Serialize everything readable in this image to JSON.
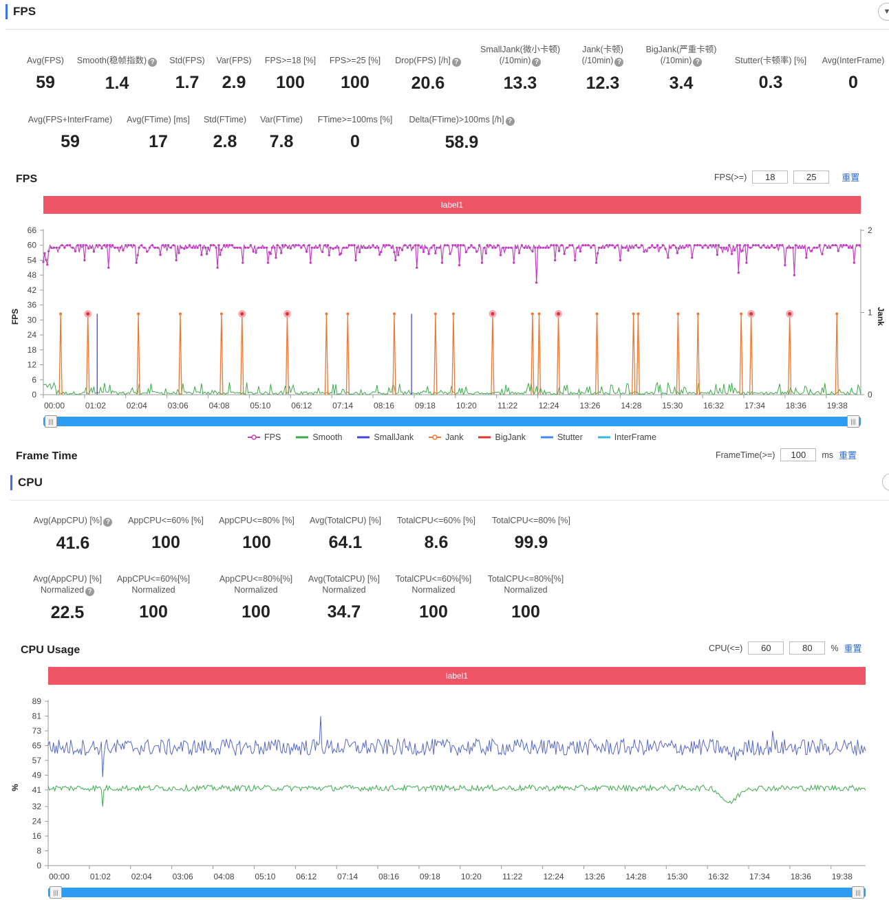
{
  "fps_section": {
    "title": "FPS",
    "metrics_row1": [
      {
        "label": "Avg(FPS)",
        "value": "59",
        "help": false
      },
      {
        "label": "Smooth(稳帧指数)",
        "value": "1.4",
        "help": true
      },
      {
        "label": "Std(FPS)",
        "value": "1.7",
        "help": false
      },
      {
        "label": "Var(FPS)",
        "value": "2.9",
        "help": false
      },
      {
        "label": "FPS>=18 [%]",
        "value": "100",
        "help": false
      },
      {
        "label": "FPS>=25 [%]",
        "value": "100",
        "help": false
      },
      {
        "label": "Drop(FPS) [/h]",
        "value": "20.6",
        "help": true
      },
      {
        "label": "SmallJank(微小卡顿)",
        "label2": "(/10min)",
        "value": "13.3",
        "help": true
      },
      {
        "label": "Jank(卡顿)",
        "label2": "(/10min)",
        "value": "12.3",
        "help": true
      },
      {
        "label": "BigJank(严重卡顿)",
        "label2": "(/10min)",
        "value": "3.4",
        "help": true
      },
      {
        "label": "Stutter(卡顿率) [%]",
        "value": "0.3",
        "help": false
      },
      {
        "label": "Avg(InterFrame)",
        "value": "0",
        "help": false
      }
    ],
    "metrics_row2": [
      {
        "label": "Avg(FPS+InterFrame)",
        "value": "59",
        "help": false
      },
      {
        "label": "Avg(FTime) [ms]",
        "value": "17",
        "help": false
      },
      {
        "label": "Std(FTime)",
        "value": "2.8",
        "help": false
      },
      {
        "label": "Var(FTime)",
        "value": "7.8",
        "help": false
      },
      {
        "label": "FTime>=100ms [%]",
        "value": "0",
        "help": false
      },
      {
        "label": "Delta(FTime)>100ms [/h]",
        "value": "58.9",
        "help": true
      }
    ],
    "chart": {
      "title": "FPS",
      "threshold_label": "FPS(>=)",
      "threshold1": "18",
      "threshold2": "25",
      "reset": "重置",
      "band_label": "label1",
      "y_axis_label": "FPS",
      "y2_axis_label": "Jank"
    },
    "frame_time": {
      "title": "Frame Time",
      "threshold_label": "FrameTime(>=)",
      "threshold": "100",
      "unit": "ms",
      "reset": "重置"
    }
  },
  "cpu_section": {
    "title": "CPU",
    "metrics_row1": [
      {
        "label": "Avg(AppCPU) [%]",
        "value": "41.6",
        "help": true
      },
      {
        "label": "AppCPU<=60% [%]",
        "value": "100",
        "help": false
      },
      {
        "label": "AppCPU<=80% [%]",
        "value": "100",
        "help": false
      },
      {
        "label": "Avg(TotalCPU) [%]",
        "value": "64.1",
        "help": false
      },
      {
        "label": "TotalCPU<=60% [%]",
        "value": "8.6",
        "help": false
      },
      {
        "label": "TotalCPU<=80% [%]",
        "value": "99.9",
        "help": false
      }
    ],
    "metrics_row2": [
      {
        "label": "Avg(AppCPU) [%]",
        "label2": "Normalized",
        "value": "22.5",
        "help": true
      },
      {
        "label": "AppCPU<=60%[%]",
        "label2": "Normalized",
        "value": "100",
        "help": false
      },
      {
        "label": "AppCPU<=80%[%]",
        "label2": "Normalized",
        "value": "100",
        "help": false
      },
      {
        "label": "Avg(TotalCPU) [%]",
        "label2": "Normalized",
        "value": "34.7",
        "help": false
      },
      {
        "label": "TotalCPU<=60%[%]",
        "label2": "Normalized",
        "value": "100",
        "help": false
      },
      {
        "label": "TotalCPU<=80%[%]",
        "label2": "Normalized",
        "value": "100",
        "help": false
      }
    ],
    "chart": {
      "title": "CPU Usage",
      "threshold_label": "CPU(<=)",
      "threshold1": "60",
      "threshold2": "80",
      "unit": "%",
      "reset": "重置",
      "band_label": "label1",
      "y_axis_label": "%"
    }
  },
  "colors": {
    "fps": "#c040c0",
    "smooth": "#3aaa4a",
    "smalljank": "#4444dd",
    "jank": "#ee7733",
    "bigjank": "#dd3333",
    "stutter": "#4488ee",
    "interframe": "#33bbdd",
    "band": "#ee5566",
    "slider": "#2e9cf0",
    "total_cpu": "#5566cc",
    "app_cpu": "#3aaa4a"
  },
  "chart_data": [
    {
      "type": "line",
      "title": "FPS",
      "x_ticks": [
        "00:00",
        "01:02",
        "02:04",
        "03:06",
        "04:08",
        "05:10",
        "06:12",
        "07:14",
        "08:16",
        "09:18",
        "10:20",
        "11:22",
        "12:24",
        "13:26",
        "14:28",
        "15:30",
        "16:32",
        "17:34",
        "18:36",
        "19:38"
      ],
      "y_ticks": [
        0,
        6,
        12,
        18,
        24,
        30,
        36,
        42,
        48,
        54,
        60,
        66
      ],
      "y2_ticks": [
        0,
        1,
        2
      ],
      "ylim": [
        0,
        66
      ],
      "y2lim": [
        0,
        2
      ],
      "xlim_seconds": [
        0,
        1230
      ],
      "baseline_fps": 59,
      "fps_dips": [
        {
          "t": 5,
          "v": 51
        },
        {
          "t": 62,
          "v": 54
        },
        {
          "t": 98,
          "v": 51
        },
        {
          "t": 140,
          "v": 53
        },
        {
          "t": 200,
          "v": 54
        },
        {
          "t": 262,
          "v": 51
        },
        {
          "t": 300,
          "v": 53
        },
        {
          "t": 338,
          "v": 53
        },
        {
          "t": 350,
          "v": 55
        },
        {
          "t": 402,
          "v": 53
        },
        {
          "t": 430,
          "v": 56
        },
        {
          "t": 470,
          "v": 54
        },
        {
          "t": 530,
          "v": 54
        },
        {
          "t": 562,
          "v": 51
        },
        {
          "t": 600,
          "v": 53
        },
        {
          "t": 626,
          "v": 52
        },
        {
          "t": 660,
          "v": 53
        },
        {
          "t": 708,
          "v": 53
        },
        {
          "t": 742,
          "v": 45
        },
        {
          "t": 770,
          "v": 54
        },
        {
          "t": 800,
          "v": 54
        },
        {
          "t": 832,
          "v": 53
        },
        {
          "t": 868,
          "v": 54
        },
        {
          "t": 940,
          "v": 55
        },
        {
          "t": 975,
          "v": 55
        },
        {
          "t": 1046,
          "v": 49
        },
        {
          "t": 1058,
          "v": 53
        },
        {
          "t": 1115,
          "v": 52
        },
        {
          "t": 1130,
          "v": 48
        },
        {
          "t": 1148,
          "v": 55
        },
        {
          "t": 1220,
          "v": 53
        }
      ],
      "jank_events": [
        26,
        67,
        143,
        206,
        268,
        299,
        367,
        426,
        458,
        528,
        590,
        617,
        676,
        736,
        746,
        775,
        833,
        888,
        895,
        955,
        985,
        1050,
        1065,
        1123,
        1194
      ],
      "bigjank_events": [
        67,
        299,
        367,
        676,
        775,
        1065,
        1123
      ],
      "smalljank_events": [
        81,
        554
      ],
      "smooth_level": 1
    },
    {
      "type": "line",
      "title": "CPU Usage",
      "x_ticks": [
        "00:00",
        "01:02",
        "02:04",
        "03:06",
        "04:08",
        "05:10",
        "06:12",
        "07:14",
        "08:16",
        "09:18",
        "10:20",
        "11:22",
        "12:24",
        "13:26",
        "14:28",
        "15:30",
        "16:32",
        "17:34",
        "18:36",
        "19:38"
      ],
      "y_ticks": [
        0,
        8,
        16,
        24,
        32,
        41,
        49,
        57,
        65,
        73,
        81,
        89
      ],
      "ylim": [
        0,
        89
      ],
      "xlim_seconds": [
        0,
        1230
      ],
      "series": [
        {
          "name": "TotalCPU",
          "mean": 64.1,
          "spikes": [
            {
              "t": 82,
              "v": 48
            },
            {
              "t": 410,
              "v": 81
            },
            {
              "t": 1090,
              "v": 73
            }
          ],
          "dip": {
            "start": 1010,
            "end": 1050,
            "v": 59
          }
        },
        {
          "name": "AppCPU",
          "mean": 42.0,
          "spikes": [
            {
              "t": 82,
              "v": 32
            }
          ],
          "dip": {
            "start": 1000,
            "end": 1050,
            "v": 31
          }
        }
      ]
    }
  ],
  "legend": [
    {
      "name": "FPS",
      "color": "#c040c0",
      "marker": "circle"
    },
    {
      "name": "Smooth",
      "color": "#3aaa4a",
      "marker": "line"
    },
    {
      "name": "SmallJank",
      "color": "#4444dd",
      "marker": "line"
    },
    {
      "name": "Jank",
      "color": "#ee7733",
      "marker": "circle"
    },
    {
      "name": "BigJank",
      "color": "#dd3333",
      "marker": "line"
    },
    {
      "name": "Stutter",
      "color": "#4488ee",
      "marker": "line"
    },
    {
      "name": "InterFrame",
      "color": "#33bbdd",
      "marker": "line"
    }
  ]
}
